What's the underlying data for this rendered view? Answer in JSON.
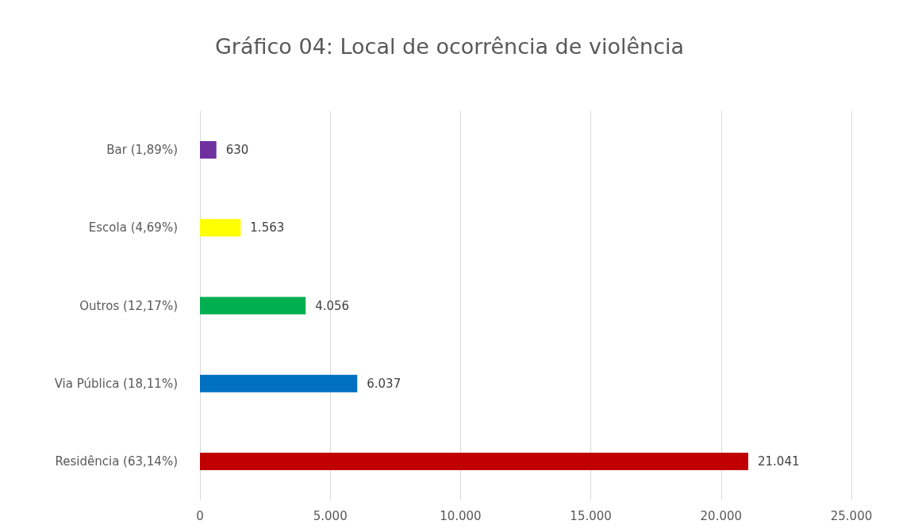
{
  "chart_data": {
    "type": "bar",
    "title": "Gráfico 04: Local de ocorrência de violência",
    "orientation": "horizontal",
    "categories": [
      "Bar (1,89%)",
      "Escola (4,69%)",
      "Outros (12,17%)",
      "Via Pública (18,11%)",
      "Residência (63,14%)"
    ],
    "values": [
      630,
      1563,
      4056,
      6037,
      21041
    ],
    "colors": [
      "#7030a0",
      "#ffff00",
      "#00b050",
      "#0070c0",
      "#c00000"
    ],
    "value_labels": [
      "630",
      "1.563",
      "4.056",
      "6.037",
      "21.041"
    ],
    "xlim": [
      0,
      25000
    ],
    "xticks": [
      {
        "value": 0,
        "label": "0"
      },
      {
        "value": 5000,
        "label": "5.000"
      },
      {
        "value": 10000,
        "label": "10.000"
      },
      {
        "value": 15000,
        "label": "15.000"
      },
      {
        "value": 20000,
        "label": "20.000"
      },
      {
        "value": 25000,
        "label": "25.000"
      }
    ],
    "grid": "x"
  }
}
